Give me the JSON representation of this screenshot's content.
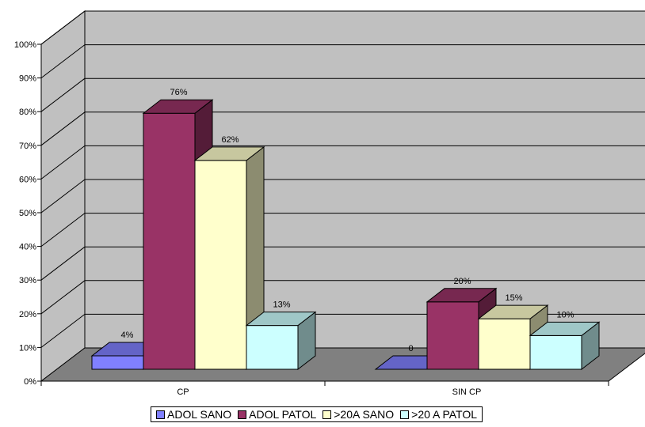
{
  "chart_data": {
    "type": "bar",
    "categories": [
      "CP",
      "SIN CP"
    ],
    "series": [
      {
        "name": "ADOL SANO",
        "values": [
          4,
          0
        ],
        "labels": [
          "4%",
          "0"
        ],
        "color": "#8080FF"
      },
      {
        "name": "ADOL PATOL",
        "values": [
          76,
          20
        ],
        "labels": [
          "76%",
          "20%"
        ],
        "color": "#993366"
      },
      {
        "name": ">20A SANO",
        "values": [
          62,
          15
        ],
        "labels": [
          "62%",
          "15%"
        ],
        "color": "#FFFFCC"
      },
      {
        "name": ">20 A PATOL",
        "values": [
          13,
          10
        ],
        "labels": [
          "13%",
          "10%"
        ],
        "color": "#CCFFFF"
      }
    ],
    "ylim": [
      0,
      100
    ],
    "yticks": [
      "0%",
      "10%",
      "20%",
      "30%",
      "40%",
      "50%",
      "60%",
      "70%",
      "80%",
      "90%",
      "100%"
    ],
    "grid": true,
    "legend_position": "bottom",
    "wall_color": "#C0C0C0",
    "floor_color": "#808080"
  }
}
